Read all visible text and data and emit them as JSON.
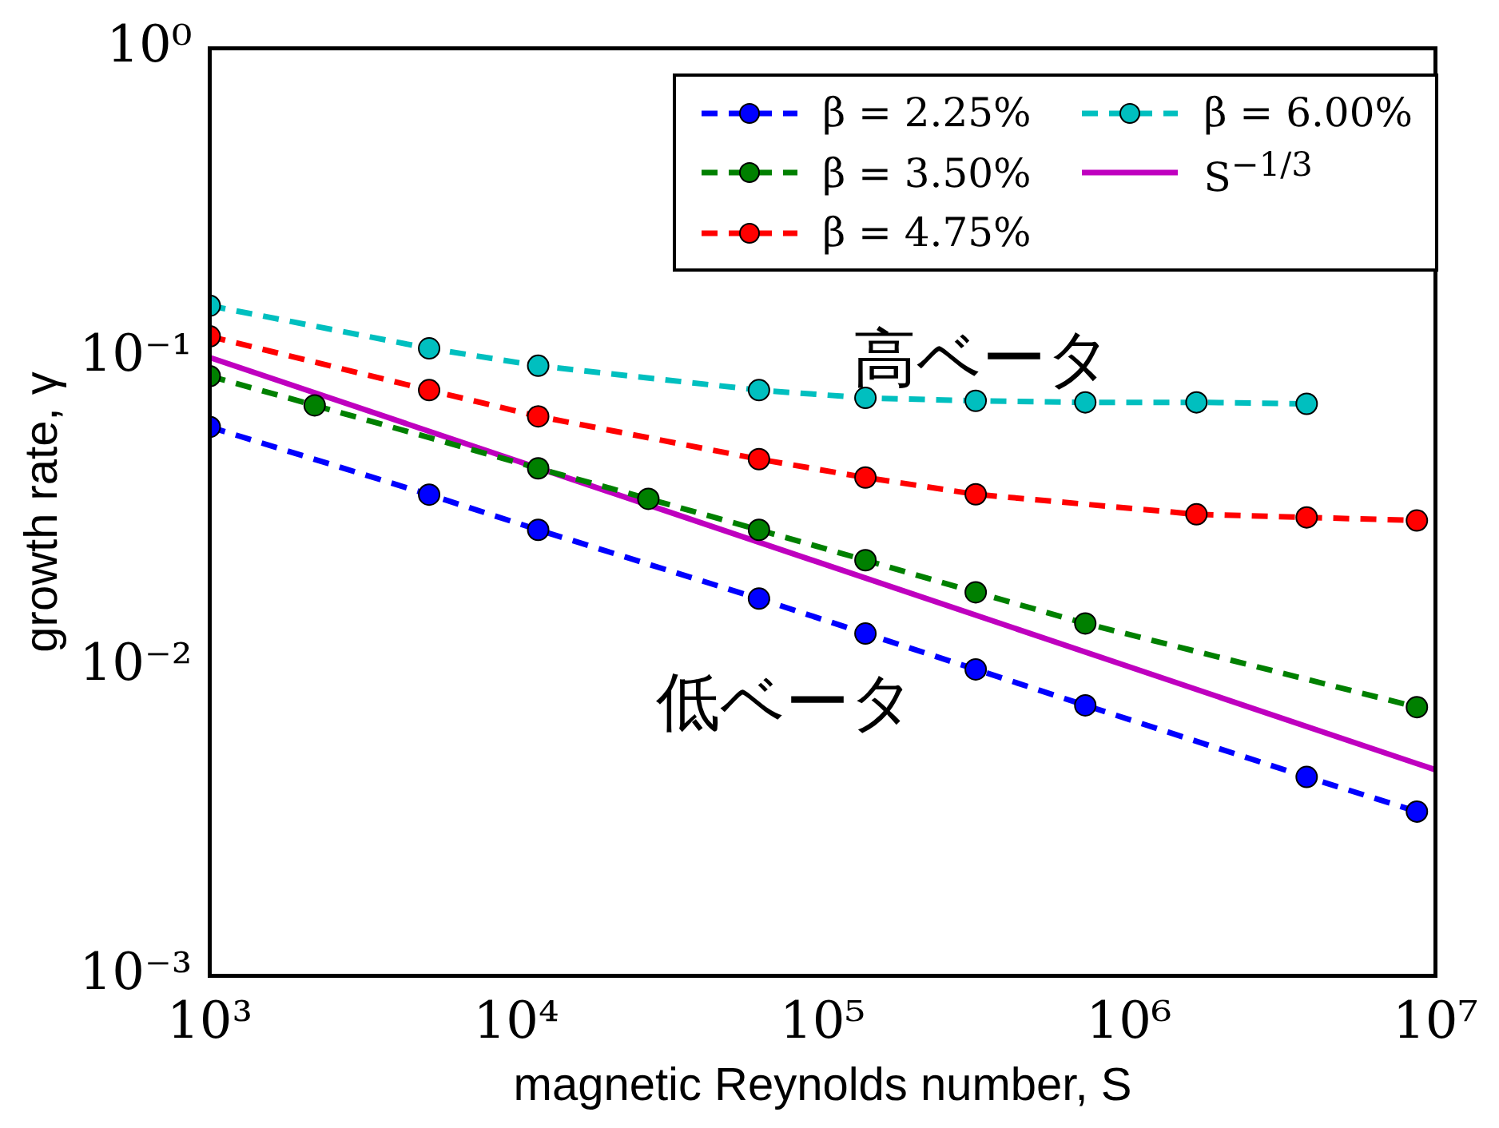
{
  "chart_data": {
    "type": "line",
    "xlabel": "magnetic Reynolds number, S",
    "ylabel": "growth rate, γ",
    "log": "xy",
    "xlim": [
      1000,
      10000000
    ],
    "ylim": [
      0.001,
      1
    ],
    "xticks": [
      {
        "value": 1000,
        "label": "10³"
      },
      {
        "value": 10000,
        "label": "10⁴"
      },
      {
        "value": 100000,
        "label": "10⁵"
      },
      {
        "value": 1000000,
        "label": "10⁶"
      },
      {
        "value": 10000000,
        "label": "10⁷"
      }
    ],
    "yticks": [
      {
        "value": 0.001,
        "label": "10⁻³"
      },
      {
        "value": 0.01,
        "label": "10⁻²"
      },
      {
        "value": 0.1,
        "label": "10⁻¹"
      },
      {
        "value": 1,
        "label": "10⁰"
      }
    ],
    "grid": false,
    "legend": "top right",
    "series": [
      {
        "name": "β = 2.25%",
        "color": "#0000ff",
        "marker": "circle",
        "line_style": "dashed",
        "x": [
          1000,
          5200,
          11800,
          62000,
          138000,
          316000,
          720000,
          3800000,
          8700000
        ],
        "values": [
          0.0596,
          0.036,
          0.0277,
          0.0166,
          0.0128,
          0.0098,
          0.0075,
          0.0044,
          0.0034
        ]
      },
      {
        "name": "β = 3.50%",
        "color": "#008000",
        "marker": "circle",
        "line_style": "dashed",
        "x": [
          1000,
          2200,
          11800,
          27000,
          62000,
          138000,
          316000,
          720000,
          8700000
        ],
        "values": [
          0.087,
          0.07,
          0.0438,
          0.0349,
          0.0277,
          0.0221,
          0.0174,
          0.0138,
          0.0074
        ]
      },
      {
        "name": "β = 4.75%",
        "color": "#ff0000",
        "marker": "circle",
        "line_style": "dashed",
        "x": [
          1000,
          5200,
          11800,
          62000,
          138000,
          316000,
          1660000,
          3800000,
          8700000
        ],
        "values": [
          0.117,
          0.0784,
          0.0645,
          0.0469,
          0.0409,
          0.0361,
          0.0311,
          0.0304,
          0.0297
        ]
      },
      {
        "name": "β = 6.00%",
        "color": "#00bfbf",
        "marker": "circle",
        "line_style": "dashed",
        "x": [
          1000,
          5200,
          11800,
          62000,
          138000,
          316000,
          720000,
          1660000,
          3800000
        ],
        "values": [
          0.147,
          0.107,
          0.094,
          0.0784,
          0.074,
          0.0724,
          0.0716,
          0.0716,
          0.0708
        ]
      },
      {
        "name": "S$^{−1/3}$",
        "color": "#bf00bf",
        "marker": "none",
        "line_style": "solid",
        "x": [
          1000,
          10000000
        ],
        "values": [
          0.1,
          0.00464
        ]
      }
    ],
    "annotations": [
      "高ベータ",
      "低ベータ"
    ]
  }
}
